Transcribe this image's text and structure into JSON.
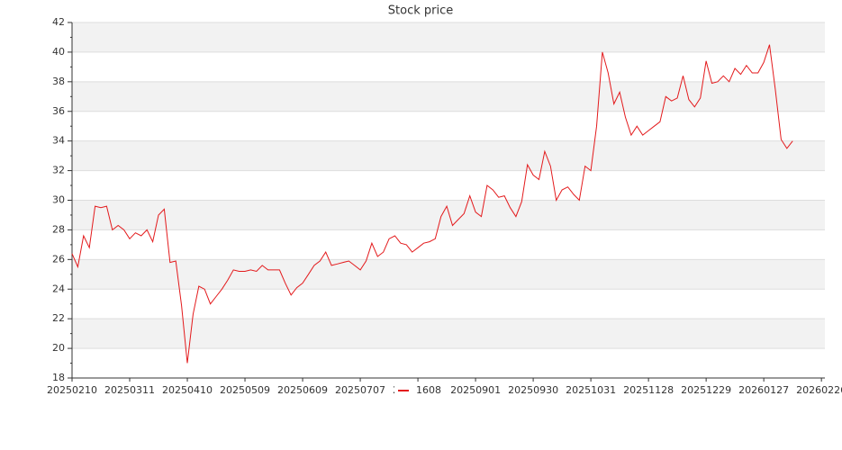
{
  "chart_data": {
    "type": "line",
    "title": "Stock price",
    "series": [
      {
        "name": "1608",
        "color": "#e31a1c",
        "values": [
          26.4,
          25.5,
          27.6,
          26.8,
          29.6,
          29.5,
          29.6,
          28.0,
          28.3,
          28.0,
          27.4,
          27.8,
          27.6,
          28.0,
          27.2,
          29.0,
          29.4,
          25.8,
          25.9,
          22.9,
          19.0,
          22.3,
          24.2,
          24.0,
          23.0,
          23.5,
          24.0,
          24.6,
          25.3,
          25.2,
          25.2,
          25.3,
          25.2,
          25.6,
          25.3,
          25.3,
          25.3,
          24.4,
          23.6,
          24.1,
          24.4,
          25.0,
          25.6,
          25.9,
          26.5,
          25.6,
          25.7,
          25.8,
          25.9,
          25.6,
          25.3,
          25.9,
          27.1,
          26.2,
          26.5,
          27.4,
          27.6,
          27.1,
          27.0,
          26.5,
          26.8,
          27.1,
          27.2,
          27.4,
          28.9,
          29.6,
          28.3,
          28.7,
          29.1,
          30.3,
          29.2,
          28.9,
          31.0,
          30.7,
          30.2,
          30.3,
          29.5,
          28.9,
          29.9,
          32.4,
          31.7,
          31.4,
          33.3,
          32.3,
          30.0,
          30.7,
          30.9,
          30.4,
          30.0,
          32.3,
          32.0,
          35.0,
          40.0,
          38.6,
          36.5,
          37.3,
          35.6,
          34.4,
          35.0,
          34.4,
          34.7,
          35.0,
          35.3,
          37.0,
          36.7,
          36.9,
          38.4,
          36.8,
          36.3,
          36.9,
          39.4,
          37.9,
          38.0,
          38.4,
          38.0,
          38.9,
          38.5,
          39.1,
          38.6,
          38.6,
          39.3,
          40.5,
          37.5,
          34.1,
          33.5,
          34.0
        ]
      }
    ],
    "xlim": [
      0,
      130.6
    ],
    "xticks": [
      {
        "value": 0,
        "label": "20250210"
      },
      {
        "value": 10,
        "label": "20250311"
      },
      {
        "value": 20,
        "label": "20250410"
      },
      {
        "value": 30,
        "label": "20250509"
      },
      {
        "value": 40,
        "label": "20250609"
      },
      {
        "value": 50,
        "label": "20250707"
      },
      {
        "value": 60,
        "label": "20250805"
      },
      {
        "value": 70,
        "label": "20250901"
      },
      {
        "value": 80,
        "label": "20250930"
      },
      {
        "value": 90,
        "label": "20251031"
      },
      {
        "value": 100,
        "label": "20251128"
      },
      {
        "value": 110,
        "label": "20251229"
      },
      {
        "value": 120,
        "label": "20260127"
      },
      {
        "value": 130,
        "label": "20260226"
      }
    ],
    "ylim": [
      18,
      42
    ],
    "yticks": [
      18,
      20,
      22,
      24,
      26,
      28,
      30,
      32,
      34,
      36,
      38,
      40,
      42
    ],
    "grid": true,
    "banded_grid": true,
    "legend": "bottom"
  }
}
